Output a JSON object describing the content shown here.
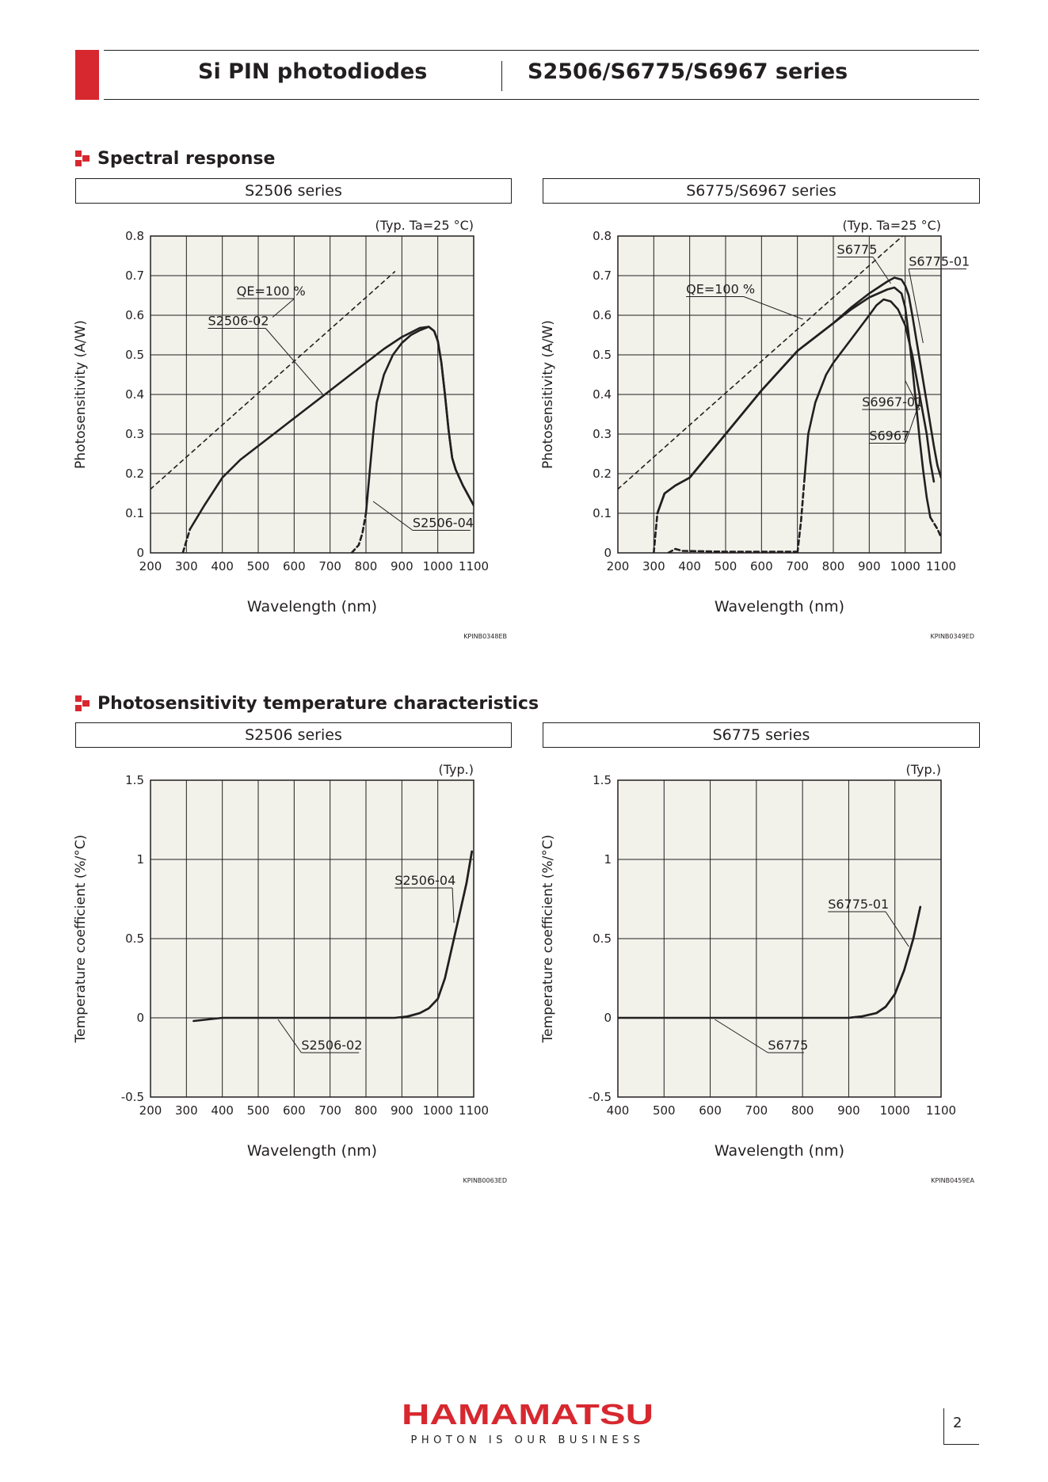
{
  "header": {
    "left_title": "Si PIN photodiodes",
    "right_title": "S2506/S6775/S6967 series"
  },
  "sections": {
    "spectral": "Spectral response",
    "temperature": "Photosensitivity temperature characteristics"
  },
  "chart_data": [
    {
      "type": "line",
      "box_title": "S2506 series",
      "condition": "(Typ. Ta=25 °C)",
      "ylabel": "Photosensitivity (A/W)",
      "xlabel": "Wavelength (nm)",
      "xlim": [
        200,
        1100
      ],
      "ylim": [
        0,
        0.8
      ],
      "xticks": [
        200,
        300,
        400,
        500,
        600,
        700,
        800,
        900,
        1000,
        1100
      ],
      "yticks": [
        0,
        0.1,
        0.2,
        0.3,
        0.4,
        0.5,
        0.6,
        0.7,
        0.8
      ],
      "ytick_labels": [
        "0",
        "0.1",
        "0.2",
        "0.3",
        "0.4",
        "0.5",
        "0.6",
        "0.7",
        "0.8"
      ],
      "grid": true,
      "code": "KPINB0348EB",
      "series": [
        {
          "name": "QE=100 %",
          "style": "dashed",
          "x": [
            200,
            400,
            600,
            800,
            880
          ],
          "y": [
            0.161,
            0.323,
            0.484,
            0.645,
            0.71
          ]
        },
        {
          "name": "S2506-02",
          "style": "solid",
          "x": [
            310,
            350,
            400,
            450,
            500,
            550,
            600,
            650,
            700,
            750,
            800,
            850,
            900,
            950,
            975,
            990,
            1000,
            1010,
            1020,
            1030,
            1040,
            1050,
            1070,
            1100
          ],
          "y": [
            0.06,
            0.12,
            0.19,
            0.235,
            0.27,
            0.305,
            0.34,
            0.375,
            0.41,
            0.445,
            0.48,
            0.515,
            0.545,
            0.568,
            0.571,
            0.56,
            0.535,
            0.48,
            0.4,
            0.31,
            0.24,
            0.21,
            0.17,
            0.12
          ]
        },
        {
          "name": "S2506-02 (dashed part)",
          "style": "dashed",
          "x": [
            290,
            300,
            310
          ],
          "y": [
            0.0,
            0.03,
            0.06
          ]
        },
        {
          "name": "S2506-04",
          "style": "solid",
          "x": [
            800,
            810,
            820,
            830,
            850,
            875,
            900,
            925,
            950,
            975,
            990,
            1000,
            1010,
            1020,
            1030,
            1040,
            1050,
            1070,
            1100
          ],
          "y": [
            0.1,
            0.2,
            0.3,
            0.38,
            0.45,
            0.5,
            0.53,
            0.55,
            0.562,
            0.571,
            0.56,
            0.535,
            0.48,
            0.4,
            0.31,
            0.24,
            0.21,
            0.17,
            0.12
          ]
        },
        {
          "name": "S2506-04 (dashed part)",
          "style": "dashed",
          "x": [
            760,
            780,
            790,
            800
          ],
          "y": [
            0.0,
            0.02,
            0.05,
            0.1
          ]
        }
      ],
      "labels": [
        {
          "text": "QE=100 %",
          "x": 440,
          "y": 0.65,
          "ax": 540,
          "ay": 0.595
        },
        {
          "text": "S2506-02",
          "x": 360,
          "y": 0.575,
          "ax": 680,
          "ay": 0.4
        },
        {
          "text": "S2506-04",
          "x": 930,
          "y": 0.065,
          "ax": 820,
          "ay": 0.13
        }
      ]
    },
    {
      "type": "line",
      "box_title": "S6775/S6967 series",
      "condition": "(Typ. Ta=25 °C)",
      "ylabel": "Photosensitivity (A/W)",
      "xlabel": "Wavelength (nm)",
      "xlim": [
        200,
        1100
      ],
      "ylim": [
        0,
        0.8
      ],
      "xticks": [
        200,
        300,
        400,
        500,
        600,
        700,
        800,
        900,
        1000,
        1100
      ],
      "yticks": [
        0,
        0.1,
        0.2,
        0.3,
        0.4,
        0.5,
        0.6,
        0.7,
        0.8
      ],
      "ytick_labels": [
        "0",
        "0.1",
        "0.2",
        "0.3",
        "0.4",
        "0.5",
        "0.6",
        "0.7",
        "0.8"
      ],
      "grid": true,
      "code": "KPINB0349ED",
      "series": [
        {
          "name": "QE=100 %",
          "style": "dashed",
          "x": [
            200,
            400,
            600,
            800,
            1000
          ],
          "y": [
            0.161,
            0.323,
            0.484,
            0.645,
            0.806
          ]
        },
        {
          "name": "S6775",
          "style": "solid",
          "x": [
            310,
            330,
            360,
            400,
            500,
            600,
            700,
            800,
            850,
            900,
            950,
            970,
            990,
            1000,
            1010,
            1020,
            1030,
            1040,
            1050,
            1060,
            1070
          ],
          "y": [
            0.1,
            0.15,
            0.17,
            0.19,
            0.3,
            0.41,
            0.51,
            0.58,
            0.615,
            0.645,
            0.665,
            0.67,
            0.655,
            0.62,
            0.55,
            0.47,
            0.38,
            0.29,
            0.21,
            0.14,
            0.09
          ]
        },
        {
          "name": "S6775 (dashed part)",
          "style": "dashed",
          "x": [
            300,
            305,
            310
          ],
          "y": [
            0.0,
            0.05,
            0.1
          ]
        },
        {
          "name": "S6775-01",
          "style": "solid",
          "x": [
            310,
            330,
            360,
            400,
            500,
            600,
            700,
            800,
            850,
            900,
            950,
            970,
            990,
            1000,
            1010,
            1020,
            1040,
            1060,
            1080,
            1090,
            1100
          ],
          "y": [
            0.1,
            0.15,
            0.17,
            0.19,
            0.3,
            0.41,
            0.51,
            0.58,
            0.62,
            0.655,
            0.685,
            0.695,
            0.69,
            0.675,
            0.65,
            0.6,
            0.49,
            0.38,
            0.27,
            0.22,
            0.19
          ]
        },
        {
          "name": "S6967-01",
          "style": "solid",
          "x": [
            720,
            730,
            750,
            780,
            800,
            850,
            900,
            920,
            940,
            960,
            980,
            1000,
            1020,
            1040,
            1060,
            1070,
            1080
          ],
          "y": [
            0.19,
            0.3,
            0.38,
            0.45,
            0.48,
            0.54,
            0.6,
            0.625,
            0.64,
            0.635,
            0.615,
            0.575,
            0.5,
            0.4,
            0.3,
            0.23,
            0.18
          ]
        },
        {
          "name": "S6967-01 (dashed part)",
          "style": "dashed",
          "x": [
            700,
            710,
            720
          ],
          "y": [
            0.0,
            0.08,
            0.19
          ]
        },
        {
          "name": "S6967",
          "style": "dashed",
          "x": [
            340,
            360,
            380,
            500,
            700
          ],
          "y": [
            0.0,
            0.01,
            0.005,
            0.003,
            0.003
          ]
        },
        {
          "name": "S6967 (tail)",
          "style": "dashed",
          "x": [
            1070,
            1090,
            1100
          ],
          "y": [
            0.09,
            0.06,
            0.04
          ]
        }
      ],
      "labels": [
        {
          "text": "S6775",
          "x": 810,
          "y": 0.755,
          "ax": 960,
          "ay": 0.68
        },
        {
          "text": "S6775-01",
          "x": 1010,
          "y": 0.725,
          "ax": 1050,
          "ay": 0.53
        },
        {
          "text": "QE=100 %",
          "x": 390,
          "y": 0.655,
          "ax": 715,
          "ay": 0.59
        },
        {
          "text": "S6967-01",
          "x": 880,
          "y": 0.37,
          "ax": 1000,
          "ay": 0.435
        },
        {
          "text": "S6967",
          "x": 900,
          "y": 0.285,
          "ax": 1040,
          "ay": 0.38
        }
      ]
    },
    {
      "type": "line",
      "box_title": "S2506 series",
      "condition": "(Typ.)",
      "ylabel": "Temperature coefficient (%/°C)",
      "xlabel": "Wavelength (nm)",
      "xlim": [
        200,
        1100
      ],
      "ylim": [
        -0.5,
        1.5
      ],
      "xticks": [
        200,
        300,
        400,
        500,
        600,
        700,
        800,
        900,
        1000,
        1100
      ],
      "yticks": [
        -0.5,
        0,
        0.5,
        1,
        1.5
      ],
      "ytick_labels": [
        "-0.5",
        "0",
        "0.5",
        "1",
        "1.5"
      ],
      "grid": true,
      "code": "KPINB0063ED",
      "series": [
        {
          "name": "S2506-02",
          "style": "solid",
          "x": [
            320,
            360,
            400,
            500,
            600,
            700,
            800,
            880,
            920,
            950,
            975,
            1000,
            1020,
            1040,
            1060,
            1080,
            1095
          ],
          "y": [
            -0.02,
            -0.01,
            0.0,
            0.0,
            0.0,
            0.0,
            0.0,
            0.0,
            0.01,
            0.03,
            0.06,
            0.12,
            0.25,
            0.45,
            0.65,
            0.85,
            1.05
          ]
        },
        {
          "name": "S2506-04",
          "style": "solid",
          "x": [
            900,
            950,
            975,
            1000,
            1020,
            1040,
            1060,
            1080,
            1095
          ],
          "y": [
            0.0,
            0.03,
            0.06,
            0.12,
            0.25,
            0.45,
            0.65,
            0.85,
            1.05
          ]
        }
      ],
      "labels": [
        {
          "text": "S2506-04",
          "x": 880,
          "y": 0.84,
          "ax": 1045,
          "ay": 0.6
        },
        {
          "text": "S2506-02",
          "x": 620,
          "y": -0.2,
          "ax": 555,
          "ay": -0.01
        }
      ]
    },
    {
      "type": "line",
      "box_title": "S6775 series",
      "condition": "(Typ.)",
      "ylabel": "Temperature coefficient (%/°C)",
      "xlabel": "Wavelength (nm)",
      "xlim": [
        400,
        1100
      ],
      "ylim": [
        -0.5,
        1.5
      ],
      "xticks": [
        400,
        500,
        600,
        700,
        800,
        900,
        1000,
        1100
      ],
      "yticks": [
        -0.5,
        0,
        0.5,
        1,
        1.5
      ],
      "ytick_labels": [
        "-0.5",
        "0",
        "0.5",
        "1",
        "1.5"
      ],
      "grid": true,
      "code": "KPINB0459EA",
      "series": [
        {
          "name": "S6775",
          "style": "solid",
          "x": [
            400,
            500,
            600,
            700,
            800,
            900,
            930,
            960,
            980,
            1000,
            1020,
            1040,
            1055
          ],
          "y": [
            0.0,
            0.0,
            0.0,
            0.0,
            0.0,
            0.0,
            0.01,
            0.03,
            0.07,
            0.15,
            0.3,
            0.5,
            0.7
          ]
        },
        {
          "name": "S6775-01",
          "style": "solid",
          "x": [
            900,
            930,
            960,
            980,
            1000,
            1020,
            1040,
            1055
          ],
          "y": [
            0.0,
            0.01,
            0.03,
            0.07,
            0.15,
            0.3,
            0.5,
            0.7
          ]
        }
      ],
      "labels": [
        {
          "text": "S6775-01",
          "x": 855,
          "y": 0.69,
          "ax": 1030,
          "ay": 0.45
        },
        {
          "text": "S6775",
          "x": 725,
          "y": -0.2,
          "ax": 610,
          "ay": -0.01
        }
      ]
    }
  ],
  "footer": {
    "logo": "HAMAMATSU",
    "tagline": "PHOTON IS OUR BUSINESS",
    "page": "2",
    "brand_color": "#d7282f"
  }
}
